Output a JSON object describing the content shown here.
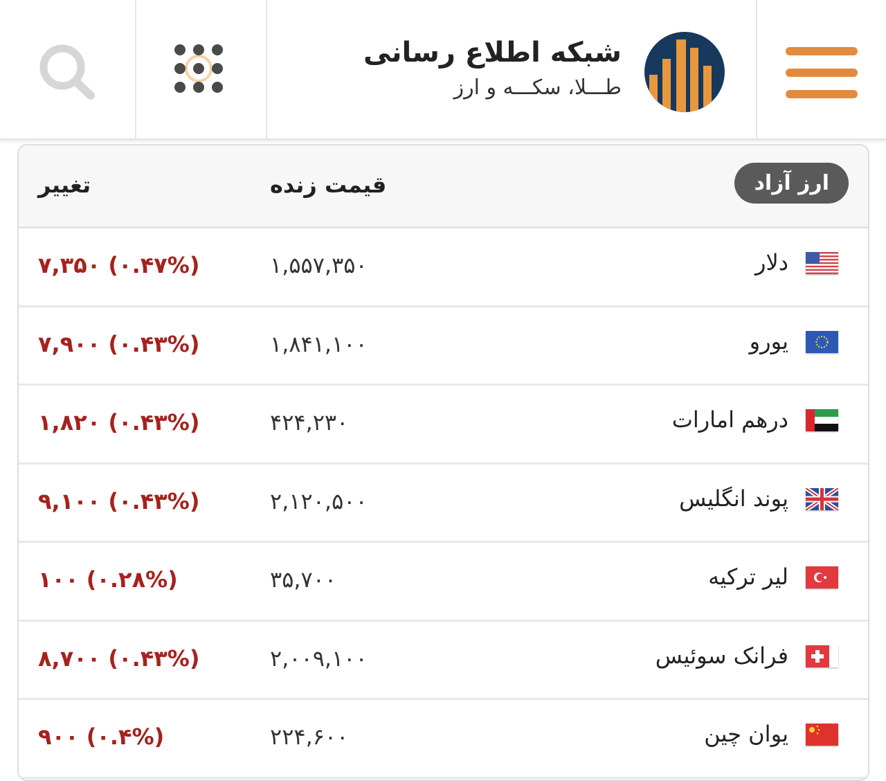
{
  "header": {
    "title": "شبکه اطلاع رسانی",
    "subtitle": "طـــلا، سکـــه و ارز",
    "icons": [
      "search-icon",
      "apps-grid-icon",
      "logo-bars",
      "hamburger-menu-icon"
    ]
  },
  "colors": {
    "accent": "#e38a3e",
    "logo_bg": "#17395e",
    "change": "#a5221e"
  },
  "table": {
    "badge": "ارز آزاد",
    "col_price": "قیمت زنده",
    "col_change": "تغییر",
    "rows": [
      {
        "name": "دلار",
        "flag": "us",
        "price": "۱,۵۵۷,۳۵۰",
        "change": "۷,۳۵۰ (۰.۴۷%)"
      },
      {
        "name": "یورو",
        "flag": "eu",
        "price": "۱,۸۴۱,۱۰۰",
        "change": "۷,۹۰۰ (۰.۴۳%)"
      },
      {
        "name": "درهم امارات",
        "flag": "ae",
        "price": "۴۲۴,۲۳۰",
        "change": "۱,۸۲۰ (۰.۴۳%)"
      },
      {
        "name": "پوند انگلیس",
        "flag": "gb",
        "price": "۲,۱۲۰,۵۰۰",
        "change": "۹,۱۰۰ (۰.۴۳%)"
      },
      {
        "name": "لیر ترکیه",
        "flag": "tr",
        "price": "۳۵,۷۰۰",
        "change": "۱۰۰ (۰.۲۸%)"
      },
      {
        "name": "فرانک سوئیس",
        "flag": "ch",
        "price": "۲,۰۰۹,۱۰۰",
        "change": "۸,۷۰۰ (۰.۴۳%)"
      },
      {
        "name": "یوان چین",
        "flag": "cn",
        "price": "۲۲۴,۶۰۰",
        "change": "۹۰۰ (۰.۴%)"
      }
    ]
  }
}
